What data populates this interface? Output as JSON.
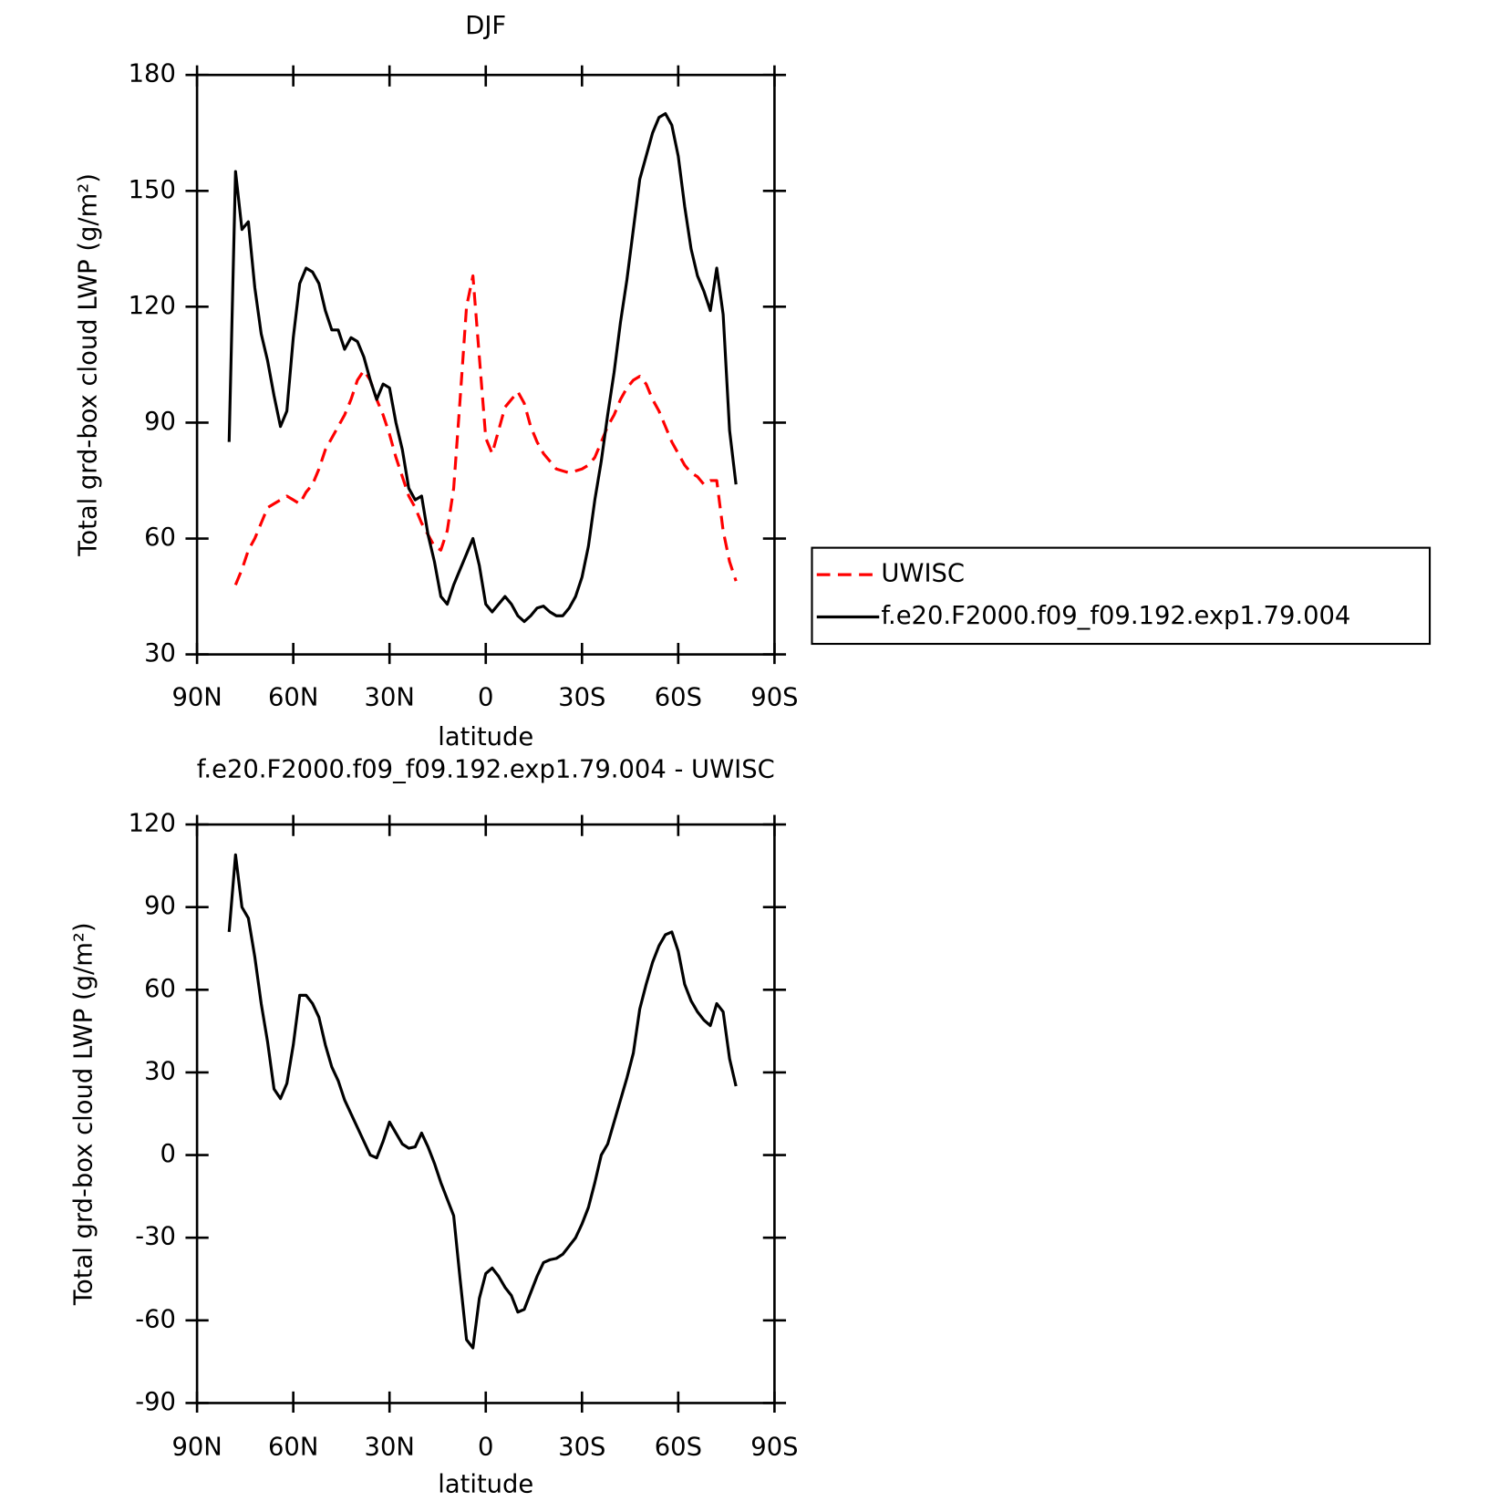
{
  "chart_data": [
    {
      "type": "line",
      "title": "DJF",
      "xlabel": "latitude",
      "ylabel": "Total grd-box cloud LWP (g/m²)",
      "x": [
        80,
        78,
        76,
        74,
        72,
        70,
        68,
        66,
        64,
        62,
        60,
        58,
        56,
        54,
        52,
        50,
        48,
        46,
        44,
        42,
        40,
        38,
        36,
        34,
        32,
        30,
        28,
        26,
        24,
        22,
        20,
        18,
        16,
        14,
        12,
        10,
        8,
        6,
        4,
        2,
        0,
        -2,
        -4,
        -6,
        -8,
        -10,
        -12,
        -14,
        -16,
        -18,
        -20,
        -22,
        -24,
        -26,
        -28,
        -30,
        -32,
        -34,
        -36,
        -38,
        -40,
        -42,
        -44,
        -46,
        -48,
        -50,
        -52,
        -54,
        -56,
        -58,
        -60,
        -62,
        -64,
        -66,
        -68,
        -70,
        -72,
        -74,
        -76,
        -78
      ],
      "series": [
        {
          "name": "UWISC",
          "color": "#ff0000",
          "dashed": true,
          "values": [
            null,
            48,
            52,
            57,
            60,
            64,
            68,
            69,
            70,
            71,
            70,
            69,
            72,
            74,
            78,
            83,
            86,
            89,
            92,
            96,
            101,
            103.5,
            101,
            96,
            92,
            87,
            81,
            76,
            71,
            68,
            64,
            61,
            58,
            57,
            62,
            73,
            96,
            120,
            128,
            107,
            86,
            82,
            88,
            94,
            96,
            98,
            95,
            89,
            85,
            82,
            80,
            78,
            77.5,
            77,
            77.5,
            78,
            79,
            81,
            85,
            89,
            92,
            96,
            99,
            101,
            102,
            100,
            96,
            93,
            89,
            85,
            82,
            79,
            77,
            76,
            74,
            75,
            75,
            62,
            54,
            49
          ]
        },
        {
          "name": "f.e20.F2000.f09_f09.192.exp1.79.004",
          "color": "#000000",
          "dashed": false,
          "values": [
            85,
            155,
            140,
            142,
            125,
            113,
            106,
            97,
            89,
            93,
            112,
            126,
            130,
            129,
            126,
            119,
            114,
            114,
            109,
            112,
            111,
            107,
            101,
            96,
            100,
            99,
            90,
            83,
            73,
            70,
            71,
            61,
            54,
            45,
            43,
            48,
            52,
            56,
            60,
            53,
            43,
            41,
            43,
            45,
            43,
            40,
            38.5,
            40,
            42,
            42.5,
            41,
            40,
            40,
            42,
            45,
            50,
            58,
            70,
            80,
            92,
            103,
            116,
            127,
            140,
            153,
            159,
            165,
            169,
            170,
            167,
            159,
            146,
            135,
            128,
            124,
            119,
            130,
            118,
            88,
            74
          ]
        }
      ],
      "xlim": [
        90,
        -90
      ],
      "xticks": [
        {
          "value": 90,
          "label": "90N"
        },
        {
          "value": 60,
          "label": "60N"
        },
        {
          "value": 30,
          "label": "30N"
        },
        0,
        {
          "value": -30,
          "label": "30S"
        },
        {
          "value": -60,
          "label": "60S"
        },
        {
          "value": -90,
          "label": "90S"
        }
      ],
      "ylim": [
        30,
        180
      ],
      "yticks": [
        30,
        60,
        90,
        120,
        150,
        180
      ],
      "legend": "right"
    },
    {
      "type": "line",
      "title": "f.e20.F2000.f09_f09.192.exp1.79.004 - UWISC",
      "xlabel": "latitude",
      "ylabel": "Total grd-box cloud LWP (g/m²)",
      "x": [
        80,
        78,
        76,
        74,
        72,
        70,
        68,
        66,
        64,
        62,
        60,
        58,
        56,
        54,
        52,
        50,
        48,
        46,
        44,
        42,
        40,
        38,
        36,
        34,
        32,
        30,
        28,
        26,
        24,
        22,
        20,
        18,
        16,
        14,
        12,
        10,
        8,
        6,
        4,
        2,
        0,
        -2,
        -4,
        -6,
        -8,
        -10,
        -12,
        -14,
        -16,
        -18,
        -20,
        -22,
        -24,
        -26,
        -28,
        -30,
        -32,
        -34,
        -36,
        -38,
        -40,
        -42,
        -44,
        -46,
        -48,
        -50,
        -52,
        -54,
        -56,
        -58,
        -60,
        -62,
        -64,
        -66,
        -68,
        -70,
        -72,
        -74,
        -76,
        -78
      ],
      "values": [
        81,
        109,
        90,
        86,
        72,
        55,
        41,
        24,
        20.5,
        26,
        40,
        58,
        58,
        55,
        50,
        40,
        32,
        27,
        20,
        15,
        10,
        5,
        0,
        -1,
        5,
        12,
        8,
        4,
        2.5,
        3,
        8,
        3,
        -3,
        -10,
        -16,
        -22,
        -45,
        -67,
        -70,
        -52,
        -43,
        -41,
        -44,
        -48,
        -51,
        -57,
        -56,
        -50,
        -44,
        -39,
        -38,
        -37.5,
        -36,
        -33,
        -30,
        -25,
        -19,
        -10,
        0,
        4,
        12,
        20,
        28,
        37,
        53,
        62,
        70,
        76,
        80,
        81,
        74,
        62,
        56,
        52,
        49,
        47,
        55,
        52,
        35,
        25
      ],
      "color": "#000000",
      "xlim": [
        90,
        -90
      ],
      "xticks": [
        {
          "value": 90,
          "label": "90N"
        },
        {
          "value": 60,
          "label": "60N"
        },
        {
          "value": 30,
          "label": "30N"
        },
        0,
        {
          "value": -30,
          "label": "30S"
        },
        {
          "value": -60,
          "label": "60S"
        },
        {
          "value": -90,
          "label": "90S"
        }
      ],
      "ylim": [
        -90,
        120
      ],
      "yticks": [
        -90,
        -60,
        -30,
        0,
        30,
        60,
        90,
        120
      ]
    }
  ]
}
